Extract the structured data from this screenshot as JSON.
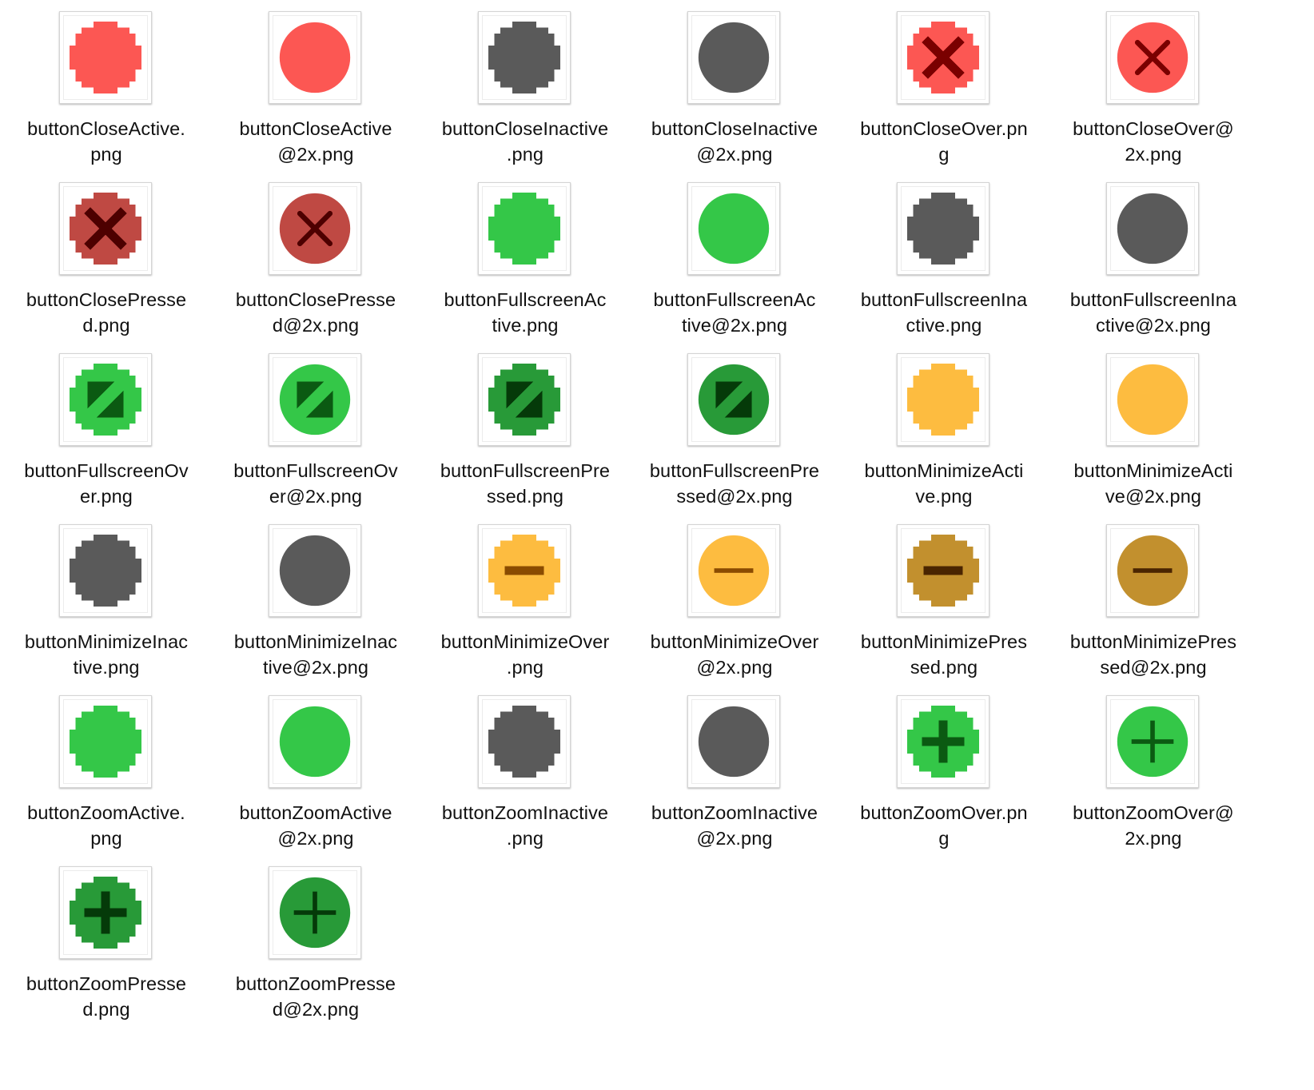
{
  "window_title": "",
  "colors": {
    "close": "#fc5753",
    "close_pressed": "#bf4943",
    "close_glyph": "#7a0000",
    "close_pressed_glyph": "#4d0000",
    "inactive": "#5a5a5a",
    "fullscreen": "#34c748",
    "fullscreen_pressed": "#289a38",
    "fullscreen_glyph": "#0b5a12",
    "fullscreen_pressed_glyph": "#053a09",
    "minimize": "#fdbc40",
    "minimize_pressed": "#c2902e",
    "minimize_glyph": "#8a4b00",
    "minimize_pressed_glyph": "#4a2500",
    "zoom": "#34c748",
    "zoom_pressed": "#289a38",
    "zoom_glyph": "#0b5a12",
    "zoom_pressed_glyph": "#053a09"
  },
  "files": [
    {
      "name": "buttonCloseActive.png",
      "label_lines": [
        "buttonCloseActive.",
        "png"
      ],
      "icon": "red-circle-icon",
      "fill": "#fc5753",
      "glyph": "none",
      "glyph_color": "",
      "pixelated": true
    },
    {
      "name": "buttonCloseActive@2x.png",
      "label_lines": [
        "buttonCloseActive",
        "@2x.png"
      ],
      "icon": "red-circle-icon",
      "fill": "#fc5753",
      "glyph": "none",
      "glyph_color": "",
      "pixelated": false
    },
    {
      "name": "buttonCloseInactive.png",
      "label_lines": [
        "buttonCloseInactive",
        ".png"
      ],
      "icon": "gray-circle-icon",
      "fill": "#5a5a5a",
      "glyph": "none",
      "glyph_color": "",
      "pixelated": true
    },
    {
      "name": "buttonCloseInactive@2x.png",
      "label_lines": [
        "buttonCloseInactive",
        "@2x.png"
      ],
      "icon": "gray-circle-icon",
      "fill": "#5a5a5a",
      "glyph": "none",
      "glyph_color": "",
      "pixelated": false
    },
    {
      "name": "buttonCloseOver.png",
      "label_lines": [
        "buttonCloseOver.pn",
        "g"
      ],
      "icon": "red-circle-x-icon",
      "fill": "#fc5753",
      "glyph": "x",
      "glyph_color": "#7a0000",
      "pixelated": true
    },
    {
      "name": "buttonCloseOver@2x.png",
      "label_lines": [
        "buttonCloseOver@",
        "2x.png"
      ],
      "icon": "red-circle-x-icon",
      "fill": "#fc5753",
      "glyph": "x",
      "glyph_color": "#7a0000",
      "pixelated": false
    },
    {
      "name": "buttonClosePressed.png",
      "label_lines": [
        "buttonClosePresse",
        "d.png"
      ],
      "icon": "dark-red-circle-x-icon",
      "fill": "#bf4943",
      "glyph": "x",
      "glyph_color": "#4d0000",
      "pixelated": true
    },
    {
      "name": "buttonClosePressed@2x.png",
      "label_lines": [
        "buttonClosePresse",
        "d@2x.png"
      ],
      "icon": "dark-red-circle-x-icon",
      "fill": "#bf4943",
      "glyph": "x",
      "glyph_color": "#4d0000",
      "pixelated": false
    },
    {
      "name": "buttonFullscreenActive.png",
      "label_lines": [
        "buttonFullscreenAc",
        "tive.png"
      ],
      "icon": "green-circle-icon",
      "fill": "#34c748",
      "glyph": "none",
      "glyph_color": "",
      "pixelated": true
    },
    {
      "name": "buttonFullscreenActive@2x.png",
      "label_lines": [
        "buttonFullscreenAc",
        "tive@2x.png"
      ],
      "icon": "green-circle-icon",
      "fill": "#34c748",
      "glyph": "none",
      "glyph_color": "",
      "pixelated": false
    },
    {
      "name": "buttonFullscreenInactive.png",
      "label_lines": [
        "buttonFullscreenIna",
        "ctive.png"
      ],
      "icon": "gray-circle-icon",
      "fill": "#5a5a5a",
      "glyph": "none",
      "glyph_color": "",
      "pixelated": true
    },
    {
      "name": "buttonFullscreenInactive@2x.png",
      "label_lines": [
        "buttonFullscreenIna",
        "ctive@2x.png"
      ],
      "icon": "gray-circle-icon",
      "fill": "#5a5a5a",
      "glyph": "none",
      "glyph_color": "",
      "pixelated": false
    },
    {
      "name": "buttonFullscreenOver.png",
      "label_lines": [
        "buttonFullscreenOv",
        "er.png"
      ],
      "icon": "green-circle-fullscreen-arrows-icon",
      "fill": "#34c748",
      "glyph": "fullscreen",
      "glyph_color": "#0b5a12",
      "pixelated": true
    },
    {
      "name": "buttonFullscreenOver@2x.png",
      "label_lines": [
        "buttonFullscreenOv",
        "er@2x.png"
      ],
      "icon": "green-circle-fullscreen-arrows-icon",
      "fill": "#34c748",
      "glyph": "fullscreen",
      "glyph_color": "#0b5a12",
      "pixelated": false
    },
    {
      "name": "buttonFullscreenPressed.png",
      "label_lines": [
        "buttonFullscreenPre",
        "ssed.png"
      ],
      "icon": "dark-green-circle-fullscreen-arrows-icon",
      "fill": "#289a38",
      "glyph": "fullscreen",
      "glyph_color": "#053a09",
      "pixelated": true
    },
    {
      "name": "buttonFullscreenPressed@2x.png",
      "label_lines": [
        "buttonFullscreenPre",
        "ssed@2x.png"
      ],
      "icon": "dark-green-circle-fullscreen-arrows-icon",
      "fill": "#289a38",
      "glyph": "fullscreen",
      "glyph_color": "#053a09",
      "pixelated": false
    },
    {
      "name": "buttonMinimizeActive.png",
      "label_lines": [
        "buttonMinimizeActi",
        "ve.png"
      ],
      "icon": "yellow-circle-icon",
      "fill": "#fdbc40",
      "glyph": "none",
      "glyph_color": "",
      "pixelated": true
    },
    {
      "name": "buttonMinimizeActive@2x.png",
      "label_lines": [
        "buttonMinimizeActi",
        "ve@2x.png"
      ],
      "icon": "yellow-circle-icon",
      "fill": "#fdbc40",
      "glyph": "none",
      "glyph_color": "",
      "pixelated": false
    },
    {
      "name": "buttonMinimizeInactive.png",
      "label_lines": [
        "buttonMinimizeInac",
        "tive.png"
      ],
      "icon": "gray-circle-icon",
      "fill": "#5a5a5a",
      "glyph": "none",
      "glyph_color": "",
      "pixelated": true
    },
    {
      "name": "buttonMinimizeInactive@2x.png",
      "label_lines": [
        "buttonMinimizeInac",
        "tive@2x.png"
      ],
      "icon": "gray-circle-icon",
      "fill": "#5a5a5a",
      "glyph": "none",
      "glyph_color": "",
      "pixelated": false
    },
    {
      "name": "buttonMinimizeOver.png",
      "label_lines": [
        "buttonMinimizeOver",
        ".png"
      ],
      "icon": "yellow-circle-minus-icon",
      "fill": "#fdbc40",
      "glyph": "minus",
      "glyph_color": "#8a4b00",
      "pixelated": true
    },
    {
      "name": "buttonMinimizeOver@2x.png",
      "label_lines": [
        "buttonMinimizeOver",
        "@2x.png"
      ],
      "icon": "yellow-circle-minus-icon",
      "fill": "#fdbc40",
      "glyph": "minus",
      "glyph_color": "#8a4b00",
      "pixelated": false
    },
    {
      "name": "buttonMinimizePressed.png",
      "label_lines": [
        "buttonMinimizePres",
        "sed.png"
      ],
      "icon": "dark-yellow-circle-minus-icon",
      "fill": "#c2902e",
      "glyph": "minus",
      "glyph_color": "#4a2500",
      "pixelated": true
    },
    {
      "name": "buttonMinimizePressed@2x.png",
      "label_lines": [
        "buttonMinimizePres",
        "sed@2x.png"
      ],
      "icon": "dark-yellow-circle-minus-icon",
      "fill": "#c2902e",
      "glyph": "minus",
      "glyph_color": "#4a2500",
      "pixelated": false
    },
    {
      "name": "buttonZoomActive.png",
      "label_lines": [
        "buttonZoomActive.",
        "png"
      ],
      "icon": "green-circle-icon",
      "fill": "#34c748",
      "glyph": "none",
      "glyph_color": "",
      "pixelated": true
    },
    {
      "name": "buttonZoomActive@2x.png",
      "label_lines": [
        "buttonZoomActive",
        "@2x.png"
      ],
      "icon": "green-circle-icon",
      "fill": "#34c748",
      "glyph": "none",
      "glyph_color": "",
      "pixelated": false
    },
    {
      "name": "buttonZoomInactive.png",
      "label_lines": [
        "buttonZoomInactive",
        ".png"
      ],
      "icon": "gray-circle-icon",
      "fill": "#5a5a5a",
      "glyph": "none",
      "glyph_color": "",
      "pixelated": true
    },
    {
      "name": "buttonZoomInactive@2x.png",
      "label_lines": [
        "buttonZoomInactive",
        "@2x.png"
      ],
      "icon": "gray-circle-icon",
      "fill": "#5a5a5a",
      "glyph": "none",
      "glyph_color": "",
      "pixelated": false
    },
    {
      "name": "buttonZoomOver.png",
      "label_lines": [
        "buttonZoomOver.pn",
        "g"
      ],
      "icon": "green-circle-plus-icon",
      "fill": "#34c748",
      "glyph": "plus",
      "glyph_color": "#0b5a12",
      "pixelated": true
    },
    {
      "name": "buttonZoomOver@2x.png",
      "label_lines": [
        "buttonZoomOver@",
        "2x.png"
      ],
      "icon": "green-circle-plus-icon",
      "fill": "#34c748",
      "glyph": "plus",
      "glyph_color": "#0b5a12",
      "pixelated": false
    },
    {
      "name": "buttonZoomPressed.png",
      "label_lines": [
        "buttonZoomPresse",
        "d.png"
      ],
      "icon": "dark-green-circle-plus-icon",
      "fill": "#289a38",
      "glyph": "plus",
      "glyph_color": "#053a09",
      "pixelated": true
    },
    {
      "name": "buttonZoomPressed@2x.png",
      "label_lines": [
        "buttonZoomPresse",
        "d@2x.png"
      ],
      "icon": "dark-green-circle-plus-icon",
      "fill": "#289a38",
      "glyph": "plus",
      "glyph_color": "#053a09",
      "pixelated": false
    }
  ]
}
